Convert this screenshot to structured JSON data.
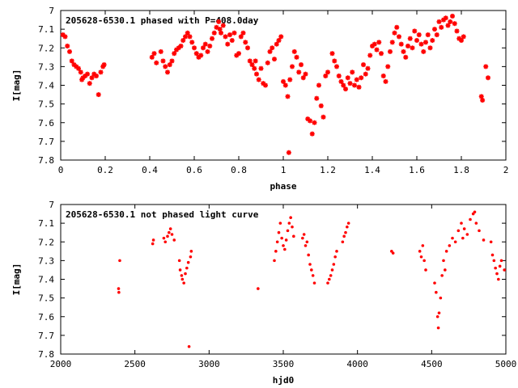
{
  "chart_data": [
    {
      "type": "scatter",
      "title": "205628-6530.1 phased with P=408.0day",
      "xlabel": "phase",
      "ylabel": "I[mag]",
      "xlim": [
        0,
        2
      ],
      "ylim": [
        7.8,
        7.0
      ],
      "y_inverted": true,
      "xticks": [
        "0",
        "0.2",
        "0.4",
        "0.6",
        "0.8",
        "1",
        "1.2",
        "1.4",
        "1.6",
        "1.8",
        "2"
      ],
      "yticks": [
        "7",
        "7.1",
        "7.2",
        "7.3",
        "7.4",
        "7.5",
        "7.6",
        "7.7",
        "7.8"
      ],
      "grid": false,
      "marker_color": "#ff0000",
      "marker": "star",
      "series": [
        {
          "points": [
            [
              0.01,
              7.13
            ],
            [
              0.02,
              7.14
            ],
            [
              0.03,
              7.19
            ],
            [
              0.04,
              7.22
            ],
            [
              0.05,
              7.27
            ],
            [
              0.06,
              7.29
            ],
            [
              0.07,
              7.3
            ],
            [
              0.08,
              7.31
            ],
            [
              0.09,
              7.33
            ],
            [
              0.095,
              7.37
            ],
            [
              0.1,
              7.36
            ],
            [
              0.11,
              7.35
            ],
            [
              0.12,
              7.34
            ],
            [
              0.13,
              7.39
            ],
            [
              0.14,
              7.36
            ],
            [
              0.15,
              7.34
            ],
            [
              0.16,
              7.35
            ],
            [
              0.17,
              7.45
            ],
            [
              0.18,
              7.33
            ],
            [
              0.19,
              7.3
            ],
            [
              0.195,
              7.29
            ],
            [
              0.41,
              7.25
            ],
            [
              0.42,
              7.23
            ],
            [
              0.43,
              7.28
            ],
            [
              0.45,
              7.22
            ],
            [
              0.46,
              7.27
            ],
            [
              0.47,
              7.3
            ],
            [
              0.48,
              7.33
            ],
            [
              0.49,
              7.29
            ],
            [
              0.5,
              7.27
            ],
            [
              0.51,
              7.23
            ],
            [
              0.52,
              7.21
            ],
            [
              0.53,
              7.2
            ],
            [
              0.54,
              7.19
            ],
            [
              0.55,
              7.16
            ],
            [
              0.56,
              7.14
            ],
            [
              0.57,
              7.12
            ],
            [
              0.58,
              7.14
            ],
            [
              0.59,
              7.17
            ],
            [
              0.6,
              7.2
            ],
            [
              0.61,
              7.23
            ],
            [
              0.62,
              7.25
            ],
            [
              0.63,
              7.24
            ],
            [
              0.64,
              7.2
            ],
            [
              0.65,
              7.18
            ],
            [
              0.66,
              7.22
            ],
            [
              0.67,
              7.19
            ],
            [
              0.68,
              7.15
            ],
            [
              0.69,
              7.12
            ],
            [
              0.7,
              7.09
            ],
            [
              0.71,
              7.06
            ],
            [
              0.715,
              7.1
            ],
            [
              0.72,
              7.12
            ],
            [
              0.73,
              7.08
            ],
            [
              0.74,
              7.14
            ],
            [
              0.75,
              7.18
            ],
            [
              0.76,
              7.13
            ],
            [
              0.77,
              7.16
            ],
            [
              0.78,
              7.12
            ],
            [
              0.79,
              7.24
            ],
            [
              0.8,
              7.23
            ],
            [
              0.81,
              7.14
            ],
            [
              0.82,
              7.12
            ],
            [
              0.83,
              7.17
            ],
            [
              0.84,
              7.2
            ],
            [
              0.85,
              7.27
            ],
            [
              0.86,
              7.29
            ],
            [
              0.87,
              7.31
            ],
            [
              0.875,
              7.27
            ],
            [
              0.88,
              7.34
            ],
            [
              0.89,
              7.37
            ],
            [
              0.9,
              7.31
            ],
            [
              0.91,
              7.39
            ],
            [
              0.92,
              7.4
            ],
            [
              0.93,
              7.28
            ],
            [
              0.94,
              7.22
            ],
            [
              0.95,
              7.2
            ],
            [
              0.96,
              7.26
            ],
            [
              0.97,
              7.18
            ],
            [
              0.98,
              7.16
            ],
            [
              0.99,
              7.14
            ],
            [
              1.0,
              7.38
            ],
            [
              1.01,
              7.4
            ],
            [
              1.02,
              7.46
            ],
            [
              1.025,
              7.76
            ],
            [
              1.03,
              7.37
            ],
            [
              1.04,
              7.3
            ],
            [
              1.05,
              7.22
            ],
            [
              1.06,
              7.25
            ],
            [
              1.07,
              7.33
            ],
            [
              1.08,
              7.29
            ],
            [
              1.09,
              7.36
            ],
            [
              1.1,
              7.34
            ],
            [
              1.11,
              7.58
            ],
            [
              1.12,
              7.59
            ],
            [
              1.13,
              7.66
            ],
            [
              1.14,
              7.6
            ],
            [
              1.15,
              7.47
            ],
            [
              1.16,
              7.4
            ],
            [
              1.17,
              7.51
            ],
            [
              1.18,
              7.57
            ],
            [
              1.19,
              7.35
            ],
            [
              1.2,
              7.33
            ],
            [
              1.22,
              7.23
            ],
            [
              1.23,
              7.27
            ],
            [
              1.24,
              7.3
            ],
            [
              1.25,
              7.35
            ],
            [
              1.26,
              7.38
            ],
            [
              1.27,
              7.4
            ],
            [
              1.28,
              7.42
            ],
            [
              1.29,
              7.36
            ],
            [
              1.3,
              7.39
            ],
            [
              1.31,
              7.33
            ],
            [
              1.32,
              7.4
            ],
            [
              1.33,
              7.37
            ],
            [
              1.34,
              7.41
            ],
            [
              1.35,
              7.36
            ],
            [
              1.36,
              7.29
            ],
            [
              1.37,
              7.34
            ],
            [
              1.38,
              7.31
            ],
            [
              1.39,
              7.24
            ],
            [
              1.4,
              7.19
            ],
            [
              1.41,
              7.18
            ],
            [
              1.42,
              7.21
            ],
            [
              1.43,
              7.17
            ],
            [
              1.44,
              7.23
            ],
            [
              1.45,
              7.35
            ],
            [
              1.46,
              7.38
            ],
            [
              1.47,
              7.3
            ],
            [
              1.48,
              7.22
            ],
            [
              1.49,
              7.17
            ],
            [
              1.5,
              7.12
            ],
            [
              1.51,
              7.09
            ],
            [
              1.52,
              7.14
            ],
            [
              1.53,
              7.18
            ],
            [
              1.54,
              7.22
            ],
            [
              1.55,
              7.25
            ],
            [
              1.56,
              7.19
            ],
            [
              1.57,
              7.15
            ],
            [
              1.58,
              7.2
            ],
            [
              1.59,
              7.11
            ],
            [
              1.6,
              7.16
            ],
            [
              1.61,
              7.13
            ],
            [
              1.62,
              7.18
            ],
            [
              1.63,
              7.22
            ],
            [
              1.64,
              7.17
            ],
            [
              1.65,
              7.13
            ],
            [
              1.66,
              7.2
            ],
            [
              1.67,
              7.16
            ],
            [
              1.68,
              7.1
            ],
            [
              1.69,
              7.13
            ],
            [
              1.7,
              7.06
            ],
            [
              1.71,
              7.09
            ],
            [
              1.72,
              7.05
            ],
            [
              1.73,
              7.04
            ],
            [
              1.74,
              7.08
            ],
            [
              1.75,
              7.06
            ],
            [
              1.76,
              7.03
            ],
            [
              1.77,
              7.07
            ],
            [
              1.78,
              7.11
            ],
            [
              1.79,
              7.15
            ],
            [
              1.8,
              7.16
            ],
            [
              1.81,
              7.14
            ],
            [
              1.89,
              7.46
            ],
            [
              1.895,
              7.48
            ],
            [
              1.91,
              7.3
            ],
            [
              1.92,
              7.36
            ]
          ]
        }
      ]
    },
    {
      "type": "scatter",
      "title": "205628-6530.1 not phased light curve",
      "xlabel": "hjd0",
      "ylabel": "I[mag]",
      "xlim": [
        2000,
        5000
      ],
      "ylim": [
        7.8,
        7.0
      ],
      "y_inverted": true,
      "xticks": [
        "2000",
        "2500",
        "3000",
        "3500",
        "4000",
        "4500",
        "5000"
      ],
      "yticks": [
        "7",
        "7.1",
        "7.2",
        "7.3",
        "7.4",
        "7.5",
        "7.6",
        "7.7",
        "7.8"
      ],
      "grid": false,
      "marker_color": "#ff0000",
      "marker": "dot",
      "series": [
        {
          "points": [
            [
              2390,
              7.45
            ],
            [
              2392,
              7.47
            ],
            [
              2398,
              7.3
            ],
            [
              2620,
              7.21
            ],
            [
              2625,
              7.19
            ],
            [
              2695,
              7.18
            ],
            [
              2705,
              7.2
            ],
            [
              2720,
              7.17
            ],
            [
              2730,
              7.15
            ],
            [
              2740,
              7.13
            ],
            [
              2750,
              7.16
            ],
            [
              2765,
              7.19
            ],
            [
              2800,
              7.3
            ],
            [
              2805,
              7.35
            ],
            [
              2815,
              7.38
            ],
            [
              2820,
              7.4
            ],
            [
              2830,
              7.42
            ],
            [
              2840,
              7.37
            ],
            [
              2850,
              7.34
            ],
            [
              2860,
              7.31
            ],
            [
              2865,
              7.76
            ],
            [
              2875,
              7.28
            ],
            [
              2880,
              7.25
            ],
            [
              3330,
              7.45
            ],
            [
              3440,
              7.3
            ],
            [
              3450,
              7.25
            ],
            [
              3460,
              7.2
            ],
            [
              3470,
              7.15
            ],
            [
              3480,
              7.1
            ],
            [
              3490,
              7.18
            ],
            [
              3500,
              7.22
            ],
            [
              3510,
              7.24
            ],
            [
              3520,
              7.19
            ],
            [
              3530,
              7.14
            ],
            [
              3540,
              7.1
            ],
            [
              3550,
              7.07
            ],
            [
              3560,
              7.12
            ],
            [
              3570,
              7.17
            ],
            [
              3630,
              7.18
            ],
            [
              3640,
              7.16
            ],
            [
              3650,
              7.22
            ],
            [
              3660,
              7.2
            ],
            [
              3670,
              7.27
            ],
            [
              3680,
              7.32
            ],
            [
              3690,
              7.35
            ],
            [
              3700,
              7.38
            ],
            [
              3710,
              7.42
            ],
            [
              3800,
              7.42
            ],
            [
              3810,
              7.4
            ],
            [
              3820,
              7.38
            ],
            [
              3830,
              7.35
            ],
            [
              3840,
              7.32
            ],
            [
              3850,
              7.28
            ],
            [
              3860,
              7.25
            ],
            [
              3900,
              7.2
            ],
            [
              3910,
              7.17
            ],
            [
              3920,
              7.15
            ],
            [
              3930,
              7.12
            ],
            [
              3940,
              7.1
            ],
            [
              4230,
              7.25
            ],
            [
              4240,
              7.26
            ],
            [
              4420,
              7.25
            ],
            [
              4430,
              7.28
            ],
            [
              4440,
              7.22
            ],
            [
              4450,
              7.3
            ],
            [
              4460,
              7.35
            ],
            [
              4520,
              7.42
            ],
            [
              4530,
              7.47
            ],
            [
              4540,
              7.6
            ],
            [
              4545,
              7.66
            ],
            [
              4550,
              7.58
            ],
            [
              4560,
              7.5
            ],
            [
              4570,
              7.38
            ],
            [
              4580,
              7.3
            ],
            [
              4590,
              7.35
            ],
            [
              4600,
              7.25
            ],
            [
              4620,
              7.22
            ],
            [
              4640,
              7.18
            ],
            [
              4660,
              7.2
            ],
            [
              4680,
              7.14
            ],
            [
              4700,
              7.1
            ],
            [
              4710,
              7.18
            ],
            [
              4720,
              7.13
            ],
            [
              4740,
              7.16
            ],
            [
              4760,
              7.08
            ],
            [
              4780,
              7.05
            ],
            [
              4790,
              7.04
            ],
            [
              4800,
              7.1
            ],
            [
              4820,
              7.14
            ],
            [
              4850,
              7.19
            ],
            [
              4900,
              7.2
            ],
            [
              4910,
              7.27
            ],
            [
              4920,
              7.3
            ],
            [
              4930,
              7.34
            ],
            [
              4940,
              7.37
            ],
            [
              4950,
              7.4
            ],
            [
              4960,
              7.33
            ],
            [
              4970,
              7.3
            ],
            [
              4990,
              7.35
            ]
          ]
        }
      ]
    }
  ]
}
